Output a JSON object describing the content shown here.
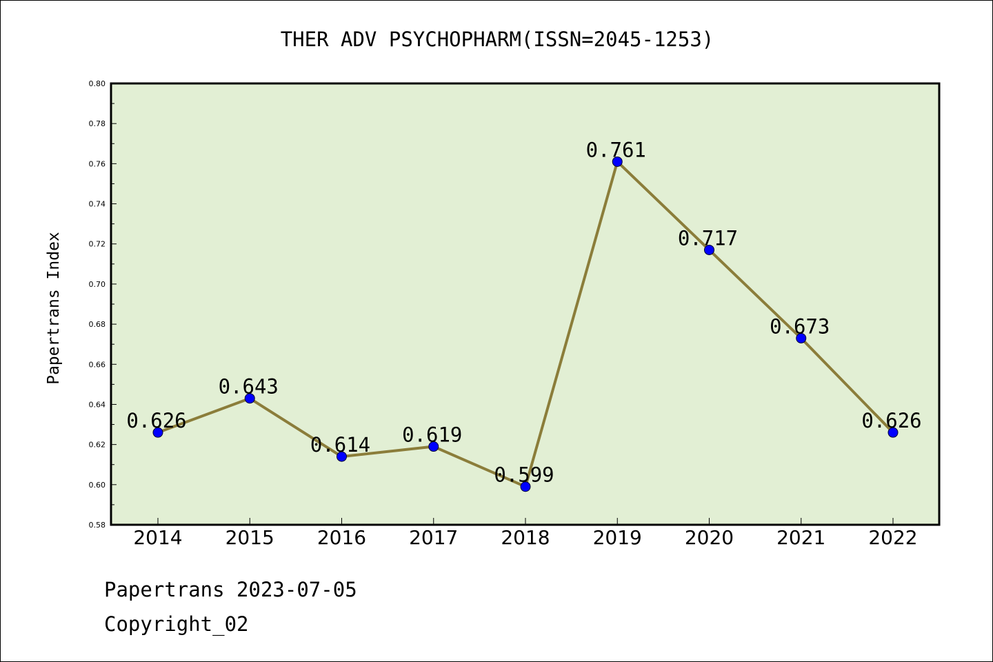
{
  "chart_data": {
    "type": "line",
    "title": "THER ADV PSYCHOPHARM(ISSN=2045-1253)",
    "xlabel": "",
    "ylabel": "Papertrans Index",
    "categories": [
      "2014",
      "2015",
      "2016",
      "2017",
      "2018",
      "2019",
      "2020",
      "2021",
      "2022"
    ],
    "values": [
      0.626,
      0.643,
      0.614,
      0.619,
      0.599,
      0.761,
      0.717,
      0.673,
      0.626
    ],
    "data_labels": [
      "0.626",
      "0.643",
      "0.614",
      "0.619",
      "0.599",
      "0.761",
      "0.717",
      "0.673",
      "0.626"
    ],
    "ylim": [
      0.58,
      0.8
    ],
    "yticks": [
      "0.58",
      "0.60",
      "0.62",
      "0.64",
      "0.66",
      "0.68",
      "0.70",
      "0.72",
      "0.74",
      "0.76",
      "0.78",
      "0.80"
    ],
    "grid": false,
    "legend": "none",
    "colors": {
      "line": "#8b7d3a",
      "marker": "#0000ff",
      "plot_background": "#e2efd4"
    }
  },
  "footer": {
    "line1": "Papertrans 2023-07-05",
    "line2": "Copyright_02"
  }
}
